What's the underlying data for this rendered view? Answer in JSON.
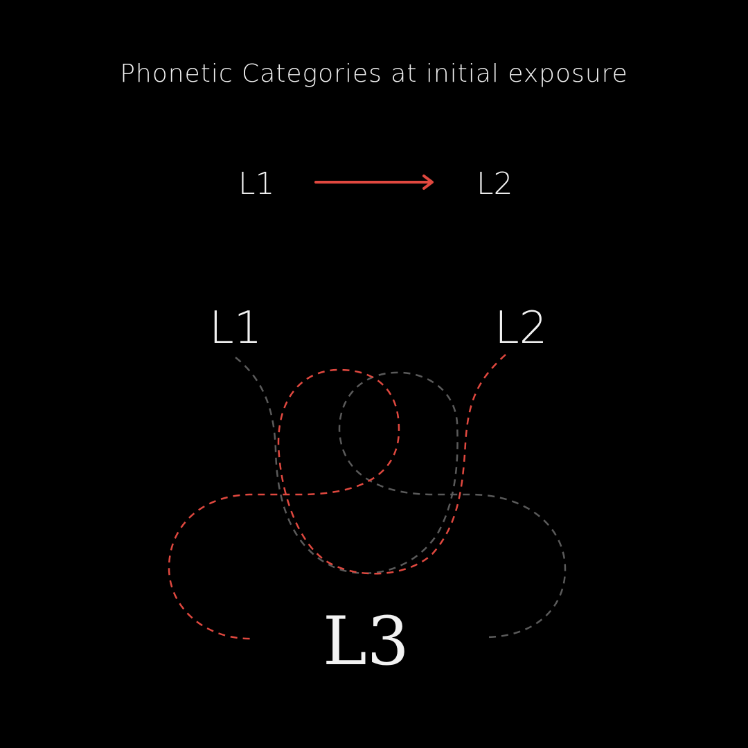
{
  "title": "Phonetic Categories at initial exposure",
  "top_row": {
    "left_label": "L1",
    "right_label": "L2"
  },
  "middle_row": {
    "left_label": "L1",
    "right_label": "L2"
  },
  "bottom_label": "L3",
  "colors": {
    "background": "#000000",
    "text": "#f2f2f2",
    "accent": "#e0483f",
    "muted": "#5a5a5a"
  }
}
